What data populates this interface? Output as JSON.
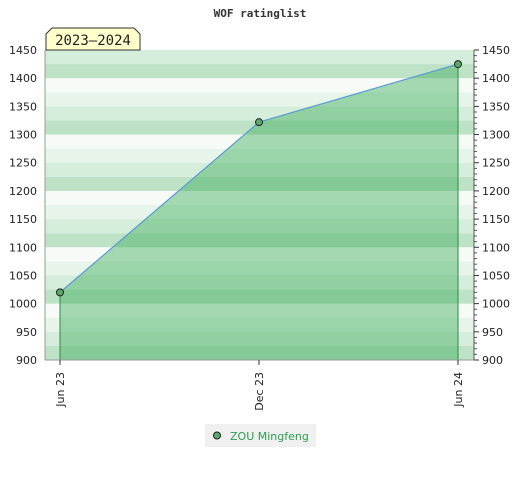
{
  "chart_data": {
    "type": "area",
    "title": "WOF ratinglist",
    "season_label": "2023–2024",
    "x": [
      "Jun 23",
      "Dec 23",
      "Jun 24"
    ],
    "series": [
      {
        "name": "ZOU Mingfeng",
        "values": [
          1020,
          1322,
          1425
        ]
      }
    ],
    "ylim": [
      900,
      1450
    ],
    "yticks": [
      900,
      950,
      1000,
      1050,
      1100,
      1150,
      1200,
      1250,
      1300,
      1350,
      1400,
      1450
    ],
    "grid": "horizontal bands",
    "legend": "bottom-center",
    "xlabel": "",
    "ylabel": ""
  },
  "colors": {
    "line": "#5b9bd5",
    "fill": "#3fae5a",
    "marker": "#5aa86a",
    "legend_text": "#2e9e4f",
    "season_badge_bg": "#ffffcc"
  }
}
